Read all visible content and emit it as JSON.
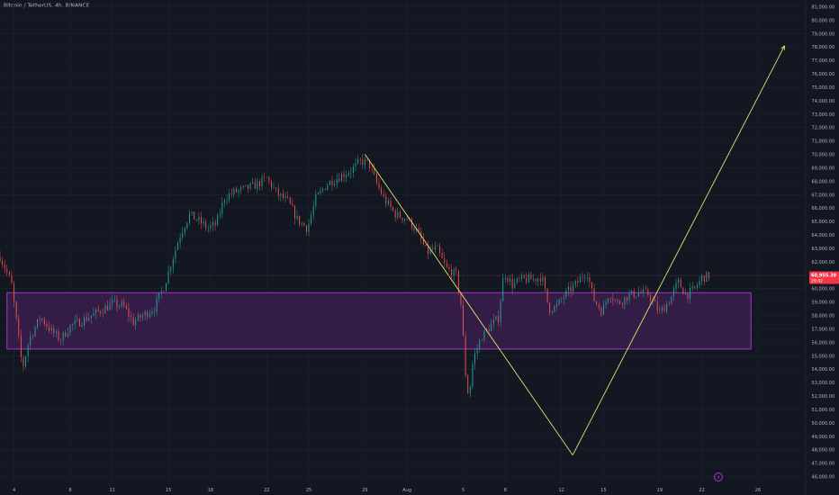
{
  "header": {
    "title": "Bitcoin / TetherUS, 4h, BINANCE"
  },
  "price_badge": {
    "price": "60,955.39",
    "countdown": "29:42"
  },
  "colors": {
    "background": "#131722",
    "grid": "#1e222d",
    "text": "#b2b5be",
    "up": "#26a69a",
    "down": "#ef5350",
    "zone_fill": "#3a1f4c",
    "zone_border": "#b03ad8",
    "projection": "#e5e169",
    "badge": "#f23645",
    "price_line": "#7a2a33"
  },
  "chart_data": {
    "type": "candlestick",
    "title": "Bitcoin / TetherUS, 4h, BINANCE",
    "ylim": [
      45500,
      81500
    ],
    "y_ticks": [
      "46,000.00",
      "47,000.00",
      "48,000.00",
      "49,000.00",
      "50,000.00",
      "51,000.00",
      "52,000.00",
      "53,000.00",
      "54,000.00",
      "55,000.00",
      "56,000.00",
      "57,000.00",
      "58,000.00",
      "59,000.00",
      "60,000.00",
      "61,000.00",
      "62,000.00",
      "63,000.00",
      "64,000.00",
      "65,000.00",
      "66,000.00",
      "67,000.00",
      "68,000.00",
      "69,000.00",
      "70,000.00",
      "71,000.00",
      "72,000.00",
      "73,000.00",
      "74,000.00",
      "75,000.00",
      "76,000.00",
      "77,000.00",
      "78,000.00",
      "79,000.00",
      "80,000.00",
      "81,000.00"
    ],
    "x_ticks": [
      {
        "label": "4",
        "day": 4
      },
      {
        "label": "8",
        "day": 8
      },
      {
        "label": "11",
        "day": 11
      },
      {
        "label": "15",
        "day": 15
      },
      {
        "label": "18",
        "day": 18
      },
      {
        "label": "22",
        "day": 22
      },
      {
        "label": "25",
        "day": 25
      },
      {
        "label": "29",
        "day": 29
      },
      {
        "label": "Aug",
        "day": 32
      },
      {
        "label": "5",
        "day": 36
      },
      {
        "label": "8",
        "day": 39
      },
      {
        "label": "12",
        "day": 43
      },
      {
        "label": "15",
        "day": 46
      },
      {
        "label": "19",
        "day": 50
      },
      {
        "label": "22",
        "day": 53
      },
      {
        "label": "26",
        "day": 57
      }
    ],
    "day_range": [
      3.0,
      60.4
    ],
    "path": [
      [
        3.0,
        62400
      ],
      [
        3.8,
        60500
      ],
      [
        4.3,
        56500
      ],
      [
        4.6,
        54000
      ],
      [
        5.1,
        56300
      ],
      [
        5.9,
        57900
      ],
      [
        6.6,
        56900
      ],
      [
        7.3,
        56200
      ],
      [
        8.0,
        57200
      ],
      [
        9.0,
        57700
      ],
      [
        9.7,
        58100
      ],
      [
        10.4,
        58500
      ],
      [
        11.0,
        58900
      ],
      [
        11.8,
        58700
      ],
      [
        12.5,
        57500
      ],
      [
        13.2,
        58000
      ],
      [
        14.0,
        58600
      ],
      [
        14.7,
        60200
      ],
      [
        15.3,
        62300
      ],
      [
        15.9,
        64200
      ],
      [
        16.5,
        65500
      ],
      [
        17.1,
        65100
      ],
      [
        17.8,
        64500
      ],
      [
        18.4,
        64800
      ],
      [
        19.0,
        66800
      ],
      [
        19.7,
        67200
      ],
      [
        20.4,
        67400
      ],
      [
        21.2,
        67700
      ],
      [
        22.0,
        68200
      ],
      [
        22.8,
        67000
      ],
      [
        23.5,
        66500
      ],
      [
        24.2,
        65100
      ],
      [
        24.9,
        64500
      ],
      [
        25.5,
        66700
      ],
      [
        26.3,
        67800
      ],
      [
        27.1,
        68300
      ],
      [
        28.0,
        68800
      ],
      [
        28.7,
        69500
      ],
      [
        29.3,
        69300
      ],
      [
        29.8,
        67900
      ],
      [
        30.4,
        66600
      ],
      [
        31.2,
        65500
      ],
      [
        32.0,
        65200
      ],
      [
        32.7,
        64300
      ],
      [
        33.4,
        62700
      ],
      [
        34.1,
        63000
      ],
      [
        34.8,
        61500
      ],
      [
        35.5,
        61000
      ],
      [
        35.9,
        58400
      ],
      [
        36.1,
        54200
      ],
      [
        36.4,
        51800
      ],
      [
        36.7,
        54700
      ],
      [
        37.3,
        56400
      ],
      [
        38.0,
        57300
      ],
      [
        38.5,
        57800
      ],
      [
        38.9,
        61200
      ],
      [
        39.5,
        60300
      ],
      [
        40.2,
        60700
      ],
      [
        41.0,
        60700
      ],
      [
        41.6,
        60900
      ],
      [
        42.1,
        58500
      ],
      [
        42.6,
        58600
      ],
      [
        43.3,
        59600
      ],
      [
        44.1,
        60400
      ],
      [
        44.8,
        61300
      ],
      [
        45.3,
        59200
      ],
      [
        45.9,
        58300
      ],
      [
        46.4,
        59700
      ],
      [
        47.0,
        58900
      ],
      [
        47.8,
        59500
      ],
      [
        48.5,
        59700
      ],
      [
        49.2,
        59600
      ],
      [
        50.0,
        58200
      ],
      [
        50.7,
        59100
      ],
      [
        51.3,
        60500
      ],
      [
        51.9,
        59500
      ],
      [
        52.5,
        60000
      ],
      [
        53.0,
        60800
      ],
      [
        53.5,
        60950
      ]
    ],
    "zone": {
      "day_start": 3.5,
      "day_end": 56.5,
      "price_low": 55500,
      "price_high": 59700
    },
    "projection": [
      [
        29.0,
        70000
      ],
      [
        43.8,
        47600
      ],
      [
        58.9,
        78100
      ]
    ],
    "last_price": 60955.39
  }
}
